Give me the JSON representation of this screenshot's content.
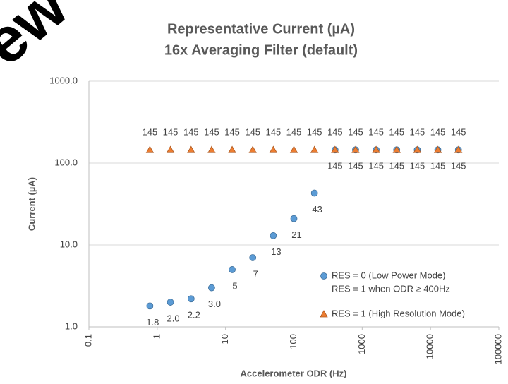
{
  "chart_data": {
    "type": "scatter",
    "title": "Representative Current (µA)",
    "subtitle": "16x Averaging Filter (default)",
    "x_label": "Accelerometer ODR (Hz)",
    "y_label": "Current (µA)",
    "watermark": "ew",
    "x": [
      0.78,
      1.56,
      3.13,
      6.25,
      12.5,
      25,
      50,
      100,
      200,
      400,
      800,
      1600,
      3200,
      6400,
      12800,
      25600
    ],
    "series": [
      {
        "name": "RES = 0 (Low Power Mode)",
        "note": "RES = 1 when ODR ≥ 400Hz",
        "color": "#5b9bd5",
        "marker": "circle",
        "values": [
          1.8,
          2.0,
          2.2,
          3.0,
          5,
          7,
          13,
          21,
          43,
          145,
          145,
          145,
          145,
          145,
          145,
          145
        ],
        "value_labels": [
          "1.8",
          "2.0",
          "2.2",
          "3.0",
          "5",
          "7",
          "13",
          "21",
          "43",
          "145",
          "145",
          "145",
          "145",
          "145",
          "145",
          "145"
        ]
      },
      {
        "name": "RES = 1 (High Resolution Mode)",
        "color": "#ed7d31",
        "marker": "triangle",
        "values": [
          145,
          145,
          145,
          145,
          145,
          145,
          145,
          145,
          145,
          145,
          145,
          145,
          145,
          145,
          145,
          145
        ],
        "value_labels": [
          "145",
          "145",
          "145",
          "145",
          "145",
          "145",
          "145",
          "145",
          "145",
          "145",
          "145",
          "145",
          "145",
          "145",
          "145",
          "145"
        ]
      }
    ],
    "xlog": true,
    "ylog": true,
    "xlim": [
      0.1,
      100000
    ],
    "ylim": [
      1,
      1000
    ],
    "xticks": [
      0.1,
      1,
      10,
      100,
      1000,
      10000,
      100000
    ],
    "yticks": [
      {
        "value": 1,
        "label": "1.0"
      },
      {
        "value": 10,
        "label": "10.0"
      },
      {
        "value": 100,
        "label": "100.0"
      },
      {
        "value": 1000,
        "label": "1000.0"
      }
    ],
    "grid": true
  }
}
